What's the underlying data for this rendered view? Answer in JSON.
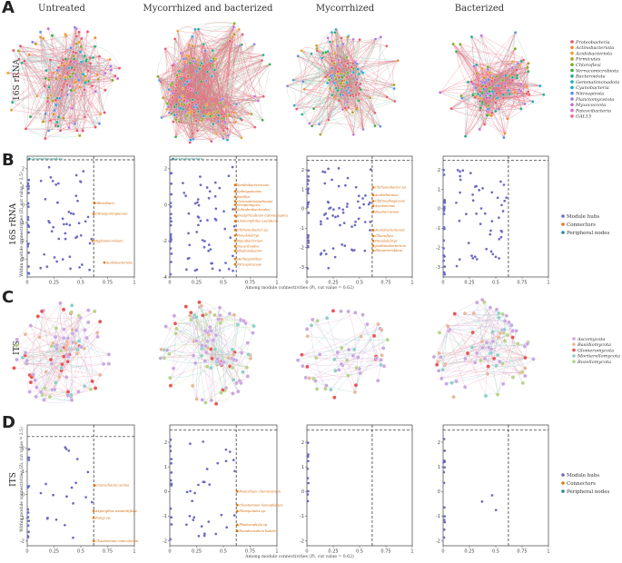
{
  "panels": {
    "A": "A",
    "B": "B",
    "C": "C",
    "D": "D"
  },
  "columns": [
    "Untreated",
    "Mycorrhized and bacterized",
    "Mycorrhized",
    "Bacterized"
  ],
  "rows": {
    "bacteria": "16S rRNA",
    "fungi": "ITS"
  },
  "legend_bacteria": [
    {
      "name": "Proteobacteria",
      "color": "#e8556a"
    },
    {
      "name": "Actinobacteriota",
      "color": "#f08a2c"
    },
    {
      "name": "Acidobacteriota",
      "color": "#ea9e2a"
    },
    {
      "name": "Firmicutes",
      "color": "#b39b1e"
    },
    {
      "name": "Chloroflexi",
      "color": "#7cab1f"
    },
    {
      "name": "Verrucomicrobiota",
      "color": "#33a94a"
    },
    {
      "name": "Bacteroidota",
      "color": "#1fae8a"
    },
    {
      "name": "Gemmatimonadota",
      "color": "#1ab0b0"
    },
    {
      "name": "Cyanobacteria",
      "color": "#1aa8d8"
    },
    {
      "name": "Nitrospirota",
      "color": "#5a8fe0"
    },
    {
      "name": "Planctomycetota",
      "color": "#9a78e0"
    },
    {
      "name": "Myxococcota",
      "color": "#c46ad8"
    },
    {
      "name": "Patescibacteria",
      "color": "#e06ab8"
    },
    {
      "name": "GAL15",
      "color": "#ee6390"
    }
  ],
  "legend_fungi": [
    {
      "name": "Ascomycota",
      "color": "#c9a8e0"
    },
    {
      "name": "Basidiomycota",
      "color": "#e8b89a"
    },
    {
      "name": "Glomeromycota",
      "color": "#e65656"
    },
    {
      "name": "Mortierellomycota",
      "color": "#8fd0c6"
    },
    {
      "name": "Rozellomycota",
      "color": "#b9d28a"
    }
  ],
  "legend_roles": [
    {
      "name": "Module hubs",
      "color": "#6a6ac4"
    },
    {
      "name": "Connectors",
      "color": "#e07a10"
    },
    {
      "name": "Peripheral nodes",
      "color": "#1f8f8a"
    }
  ],
  "zipi": {
    "xlabel": "Among module connectivities (Pi, cut value = 0.62)",
    "ylabel": "Within module connectivities (Zi, cut value = 2.5)",
    "x_ticks": [
      "0",
      "0.25",
      "0.5",
      "0.75",
      "1"
    ],
    "xlim": [
      0,
      1
    ]
  },
  "chart_data": [
    {
      "type": "scatter",
      "panel": "B",
      "title": "Untreated",
      "ylim": [
        -4,
        2.7
      ],
      "y_ticks": [
        "-3",
        "-2",
        "-1",
        "0",
        "1",
        "2"
      ],
      "annotations": [
        {
          "text": "Gemmatimonadota",
          "x": 0.02,
          "y": 2.55,
          "color": "teal"
        },
        {
          "text": "Rhizobium",
          "x": 0.63,
          "y": 0.1,
          "color": "orange"
        },
        {
          "text": "Intrasporangiaceae",
          "x": 0.62,
          "y": -0.5,
          "color": "orange"
        },
        {
          "text": "Hyphomicrobium",
          "x": 0.61,
          "y": -2.0,
          "color": "orange"
        },
        {
          "text": "Acidobacteriota",
          "x": 0.72,
          "y": -3.2,
          "color": "orange"
        }
      ]
    },
    {
      "type": "scatter",
      "panel": "B",
      "title": "Mycorrhized and bacterized",
      "ylim": [
        -4,
        2.7
      ],
      "y_ticks": [
        "-4",
        "-2",
        "0",
        "2"
      ],
      "annotations": [
        {
          "text": "Actinobacteriota",
          "x": 0.03,
          "y": 2.55,
          "color": "teal"
        },
        {
          "text": "Xanthobacteraceae",
          "x": 0.61,
          "y": 1.1,
          "color": "orange"
        },
        {
          "text": "Sphingomonas",
          "x": 0.61,
          "y": 0.75,
          "color": "orange"
        },
        {
          "text": "Bacillus",
          "x": 0.61,
          "y": 0.45,
          "color": "orange"
        },
        {
          "text": "Gemmatimonadaceae",
          "x": 0.61,
          "y": 0.2,
          "color": "orange"
        },
        {
          "text": "Streptomyces",
          "x": 0.61,
          "y": 0.0,
          "color": "orange"
        },
        {
          "text": "Solirubrobacterales",
          "x": 0.61,
          "y": -0.25,
          "color": "orange"
        },
        {
          "text": "Bradyrhizobium Catenulispora",
          "x": 0.61,
          "y": -0.6,
          "color": "orange"
        },
        {
          "text": "Ammoniphilus oxalaticus",
          "x": 0.61,
          "y": -0.9,
          "color": "orange"
        },
        {
          "text": "Chthoniobacter sp.",
          "x": 0.61,
          "y": -1.4,
          "color": "orange"
        },
        {
          "text": "Pseudolabrys",
          "x": 0.61,
          "y": -1.7,
          "color": "orange"
        },
        {
          "text": "Mycobacterium",
          "x": 0.61,
          "y": -2.0,
          "color": "orange"
        },
        {
          "text": "Nocardioides",
          "x": 0.61,
          "y": -2.3,
          "color": "orange"
        },
        {
          "text": "Rhodanobacter",
          "x": 0.61,
          "y": -2.55,
          "color": "orange"
        },
        {
          "text": "Herbaspirillum",
          "x": 0.61,
          "y": -3.0,
          "color": "orange"
        },
        {
          "text": "Nitrospiraceae",
          "x": 0.61,
          "y": -3.3,
          "color": "orange"
        }
      ]
    },
    {
      "type": "scatter",
      "panel": "B",
      "title": "Mycorrhized",
      "ylim": [
        -3.5,
        2.7
      ],
      "y_ticks": [
        "-3",
        "-2",
        "-1",
        "0",
        "1",
        "2"
      ],
      "annotations": [
        {
          "text": "Chthoniobacter sp.",
          "x": 0.63,
          "y": 1.1,
          "color": "orange"
        },
        {
          "text": "Acidothermus",
          "x": 0.63,
          "y": 0.7,
          "color": "orange"
        },
        {
          "text": "Chitinophagaceae",
          "x": 0.63,
          "y": 0.4,
          "color": "orange"
        },
        {
          "text": "Arenimonas",
          "x": 0.63,
          "y": 0.15,
          "color": "orange"
        },
        {
          "text": "Roseiarcaceae",
          "x": 0.63,
          "y": -0.15,
          "color": "orange"
        },
        {
          "text": "Acetobacteraceae",
          "x": 0.63,
          "y": -1.1,
          "color": "orange"
        },
        {
          "text": "Chloroflexi",
          "x": 0.63,
          "y": -1.4,
          "color": "orange"
        },
        {
          "text": "Pseudolabrys",
          "x": 0.63,
          "y": -1.65,
          "color": "orange"
        },
        {
          "text": "Janthinobacterium",
          "x": 0.63,
          "y": -1.9,
          "color": "orange"
        },
        {
          "text": "Rhizomicrobium",
          "x": 0.63,
          "y": -2.15,
          "color": "orange"
        }
      ]
    },
    {
      "type": "scatter",
      "panel": "B",
      "title": "Bacterized",
      "ylim": [
        -3.5,
        2.7
      ],
      "y_ticks": [
        "-3",
        "-2",
        "-1",
        "0",
        "1",
        "2"
      ],
      "annotations": []
    },
    {
      "type": "scatter",
      "panel": "D",
      "title": "Untreated",
      "ylim": [
        -2.2,
        3.0
      ],
      "y_ticks": [
        "-2",
        "-1",
        "0",
        "1",
        "2"
      ],
      "annotations": [
        {
          "text": "Coniochaeta canina",
          "x": 0.63,
          "y": 0.4,
          "color": "orange"
        },
        {
          "text": "Aspergillus westerdijkiae",
          "x": 0.62,
          "y": -0.7,
          "color": "orange"
        },
        {
          "text": "Fungi sp.",
          "x": 0.62,
          "y": -1.0,
          "color": "orange"
        },
        {
          "text": "Chaetomium cuniculorum",
          "x": 0.62,
          "y": -2.0,
          "color": "orange"
        }
      ]
    },
    {
      "type": "scatter",
      "panel": "D",
      "title": "Mycorrhized and bacterized",
      "ylim": [
        -2.2,
        2.7
      ],
      "y_ticks": [
        "-2",
        "-1",
        "0",
        "1",
        "2"
      ],
      "annotations": [
        {
          "text": "Penicillium chermesinum",
          "x": 0.63,
          "y": 0.0,
          "color": "orange"
        },
        {
          "text": "Chaetomium homopilatum",
          "x": 0.63,
          "y": -0.55,
          "color": "orange"
        },
        {
          "text": "Pleosporales sp.",
          "x": 0.63,
          "y": -0.8,
          "color": "orange"
        },
        {
          "text": "Phialocephala sp.",
          "x": 0.63,
          "y": -1.35,
          "color": "orange"
        },
        {
          "text": "Pseudeurotium bakeri",
          "x": 0.63,
          "y": -1.6,
          "color": "orange"
        }
      ]
    },
    {
      "type": "scatter",
      "panel": "D",
      "title": "Mycorrhized",
      "ylim": [
        -2.2,
        2.7
      ],
      "y_ticks": [
        "-2",
        "-1",
        "0",
        "1",
        "2"
      ],
      "annotations": []
    },
    {
      "type": "scatter",
      "panel": "D",
      "title": "Bacterized",
      "ylim": [
        -2.2,
        2.7
      ],
      "y_ticks": [
        "-2",
        "-1",
        "0",
        "1",
        "2"
      ],
      "annotations": []
    }
  ]
}
